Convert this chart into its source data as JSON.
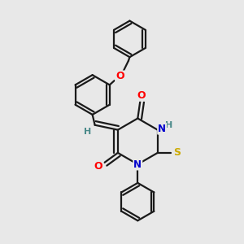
{
  "background_color": "#e8e8e8",
  "bond_color": "#1a1a1a",
  "atom_colors": {
    "O": "#ff0000",
    "N": "#0000cc",
    "S": "#ccaa00",
    "H": "#4a8a8a",
    "C": "#1a1a1a"
  },
  "lw": 1.6,
  "figsize": [
    3.0,
    3.0
  ],
  "dpi": 100
}
